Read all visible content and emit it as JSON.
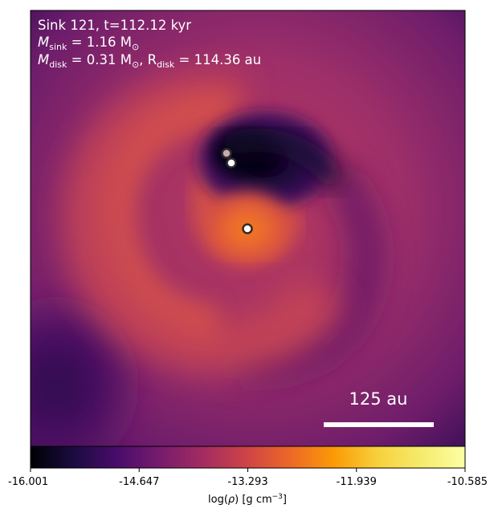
{
  "panel": {
    "title_line1": "Sink 121, t=112.12 kyr",
    "msink_label": "M",
    "msink_sub": "sink",
    "msink_value": " = 1.16 M",
    "msink_unit_sub": "⊙",
    "mdisk_label": "M",
    "mdisk_sub": "disk",
    "mdisk_value": " = 0.31 M",
    "mdisk_unit_sub": "⊙",
    "rdisk_sep": ", R",
    "rdisk_sub": "disk",
    "rdisk_value": " = 114.36 au"
  },
  "scale_bar": {
    "label": "125 au",
    "color": "#ffffff"
  },
  "sinks": [
    {
      "name": "sink-upper",
      "fill": "#c9a9b0"
    },
    {
      "name": "sink-middle",
      "fill": "#ffffff"
    },
    {
      "name": "sink-primary",
      "fill": "#ffffff"
    }
  ],
  "colorbar": {
    "colormap": "inferno",
    "ticks": [
      "-16.001",
      "-14.647",
      "-13.293",
      "-11.939",
      "-10.585"
    ],
    "label_prefix": "log(",
    "label_rho": "ρ",
    "label_suffix": ") [g cm",
    "label_exp": "−3",
    "label_end": "]"
  },
  "colors": {
    "background_density": "#9a2b67",
    "inner_void": "#0b0420",
    "arm": "#d8534a",
    "core": "#f07a2a"
  }
}
